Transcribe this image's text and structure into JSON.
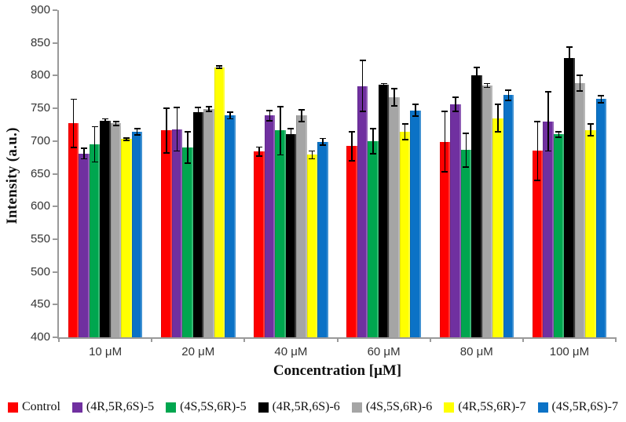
{
  "chart_data": {
    "type": "bar",
    "title": "",
    "xlabel": "Concentration [μM]",
    "ylabel": "Intensity (a.u.)",
    "ylim": [
      400,
      900
    ],
    "ytick_step": 50,
    "yticks": [
      900,
      850,
      800,
      750,
      700,
      650,
      600,
      550,
      500,
      450,
      400
    ],
    "grid": false,
    "legend_position": "bottom",
    "error_bars": true,
    "categories": [
      "10 μM",
      "20 μM",
      "40 μM",
      "60 μM",
      "80 μM",
      "100 μM"
    ],
    "series": [
      {
        "name": "Control",
        "color": "#fe0000",
        "values": [
          727,
          716,
          684,
          692,
          699,
          685
        ],
        "errors": [
          37,
          34,
          7,
          22,
          46,
          45
        ]
      },
      {
        "name": "(4R,5R,6S)-5",
        "color": "#7030a0",
        "values": [
          681,
          718,
          739,
          784,
          756,
          730
        ],
        "errors": [
          8,
          33,
          8,
          39,
          11,
          45
        ]
      },
      {
        "name": "(4S,5S,6R)-5",
        "color": "#00a64f",
        "values": [
          695,
          690,
          716,
          700,
          686,
          710
        ],
        "errors": [
          27,
          24,
          37,
          19,
          26,
          4
        ]
      },
      {
        "name": "(4R,5R,6S)-6",
        "color": "#000000",
        "values": [
          731,
          744,
          710,
          786,
          800,
          827
        ],
        "errors": [
          3,
          7,
          9,
          2,
          13,
          17
        ]
      },
      {
        "name": "(4S,5S,6R)-6",
        "color": "#a5a5a5",
        "values": [
          727,
          749,
          739,
          767,
          785,
          789
        ],
        "errors": [
          3,
          4,
          9,
          13,
          3,
          12
        ]
      },
      {
        "name": "(4R,5S,6R)-7",
        "color": "#ffff00",
        "values": [
          703,
          813,
          679,
          714,
          735,
          717
        ],
        "errors": [
          2,
          2,
          6,
          12,
          21,
          9
        ]
      },
      {
        "name": "(4S,5R,6S)-7",
        "color": "#0b72c6",
        "values": [
          714,
          739,
          699,
          747,
          770,
          764
        ],
        "errors": [
          5,
          5,
          5,
          9,
          8,
          5
        ]
      }
    ]
  }
}
